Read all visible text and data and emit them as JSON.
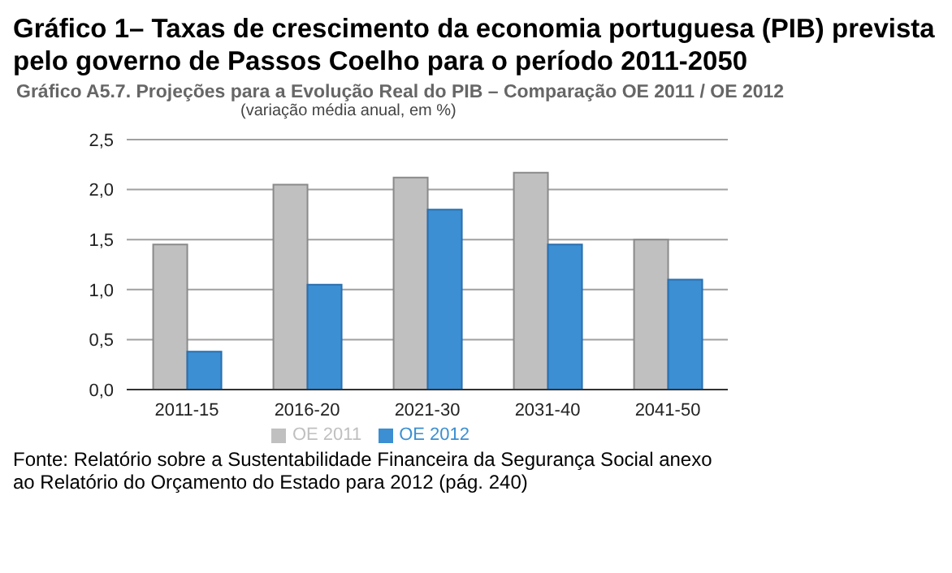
{
  "chart_data": {
    "type": "bar",
    "title": "Gráfico 1– Taxas de crescimento da economia portuguesa  (PIB) prevista pelo governo de Passos Coelho para o período 2011-2050",
    "subtitle": "Gráfico A5.7. Projeções para a Evolução Real do PIB – Comparação OE 2011 / OE 2012",
    "annotations": [
      "(variação média anual, em %)",
      "Fonte: Relatório sobre a Sustentabilidade Financeira da Segurança Social anexo ao Relatório do Orçamento do Estado para 2012 (pág. 240)"
    ],
    "categories": [
      "2011-15",
      "2016-20",
      "2021-30",
      "2031-40",
      "2041-50"
    ],
    "series": [
      {
        "name": "OE 2011",
        "color": "#c0c0c0",
        "values": [
          1.45,
          2.05,
          2.12,
          2.17,
          1.5
        ]
      },
      {
        "name": "OE 2012",
        "color": "#3b8fd2",
        "values": [
          0.38,
          1.05,
          1.8,
          1.45,
          1.1
        ]
      }
    ],
    "ylim": [
      0,
      2.5
    ],
    "yticks": [
      {
        "value": 0,
        "label": "0,0"
      },
      {
        "value": 0.5,
        "label": "0,5"
      },
      {
        "value": 1,
        "label": "1,0"
      },
      {
        "value": 1.5,
        "label": "1,5"
      },
      {
        "value": 2,
        "label": "2,0"
      },
      {
        "value": 2.5,
        "label": "2,5"
      }
    ],
    "grid": "y",
    "legend": "bottom"
  }
}
